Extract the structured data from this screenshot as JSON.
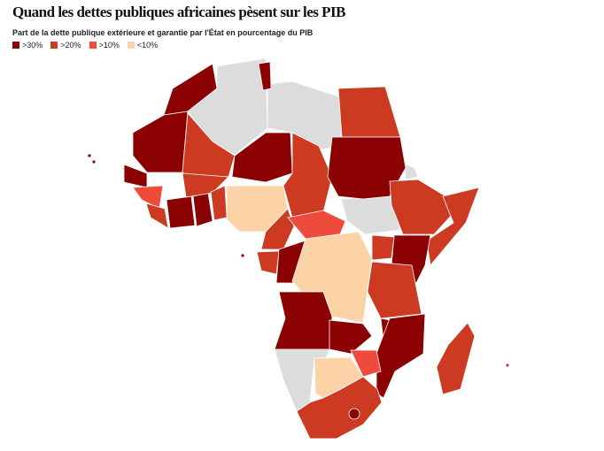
{
  "title": "Quand les dettes publiques africaines pèsent sur les PIB",
  "subtitle": "Part de la dette publique extérieure et garantie par l'État en pourcentage du PIB",
  "legend": [
    {
      "label": ">30%",
      "color": "#8b0000"
    },
    {
      "label": ">20%",
      "color": "#cc3a22"
    },
    {
      "label": ">10%",
      "color": "#ef4b3c"
    },
    {
      "label": "<10%",
      "color": "#fcd3a6"
    }
  ]
}
